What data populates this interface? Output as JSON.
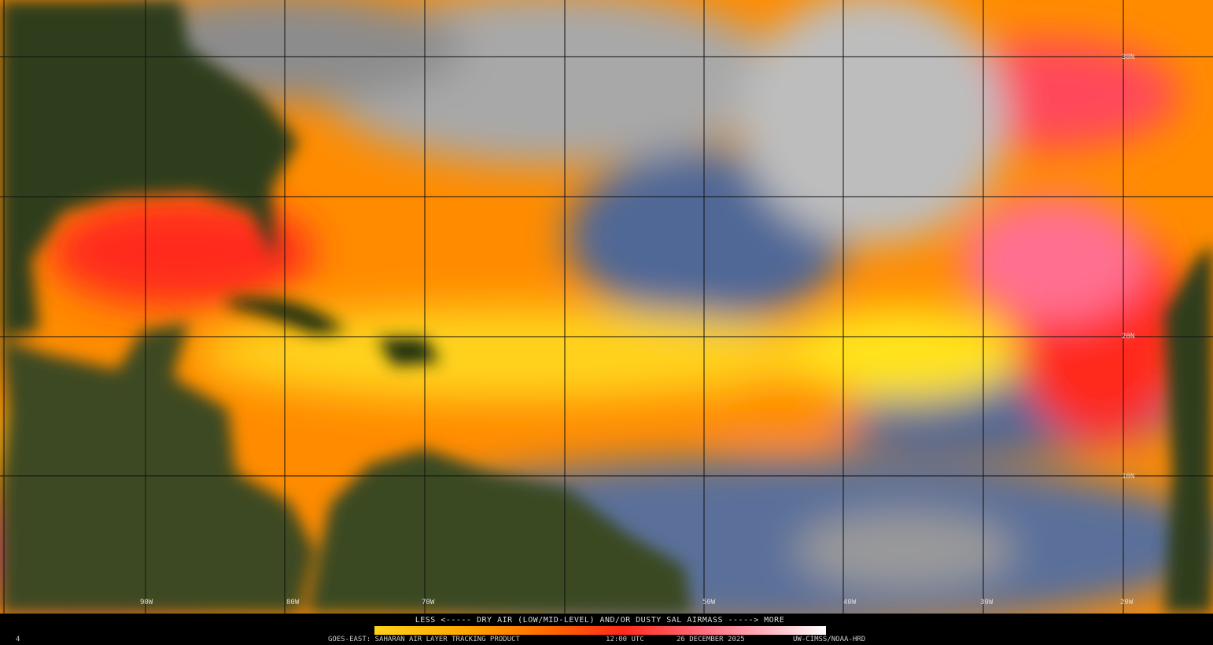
{
  "map": {
    "lat_labels": [
      "30N",
      "20N",
      "10N"
    ],
    "lon_labels": [
      "90W",
      "80W",
      "70W",
      "50W",
      "40W",
      "30W",
      "20W"
    ]
  },
  "legend": {
    "caption": "LESS <----- DRY AIR (LOW/MID-LEVEL) AND/OR DUSTY SAL AIRMASS -----> MORE"
  },
  "footer": {
    "frame": "4",
    "product": "GOES-EAST: SAHARAN AIR LAYER TRACKING PRODUCT",
    "time": "12:00 UTC",
    "date": "26 DECEMBER 2025",
    "credit": "UW-CIMSS/NOAA-HRD"
  }
}
